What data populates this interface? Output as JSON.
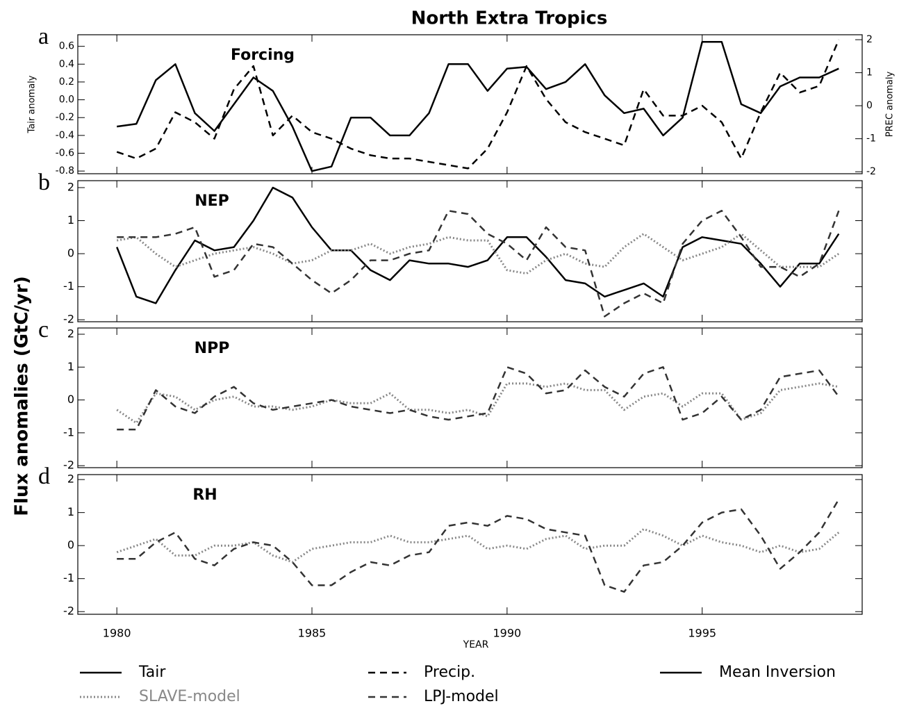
{
  "chart_data": [
    {
      "type": "line",
      "title": "North Extra Tropics",
      "panel_letter": "a",
      "panel_title": "Forcing",
      "ylabel": "Tair anomaly",
      "y2label": "PREC anomaly",
      "x": [
        1980,
        1980.5,
        1981,
        1981.5,
        1982,
        1982.5,
        1983,
        1983.5,
        1984,
        1984.5,
        1985,
        1985.5,
        1986,
        1986.5,
        1987,
        1987.5,
        1988,
        1988.5,
        1989,
        1989.5,
        1990,
        1990.5,
        1991,
        1991.5,
        1992,
        1992.5,
        1993,
        1993.5,
        1994,
        1994.5,
        1995,
        1995.5,
        1996,
        1996.5,
        1997,
        1997.5,
        1998,
        1998.5
      ],
      "xlim": [
        1979,
        1999.1
      ],
      "ylim": [
        -0.83,
        0.73
      ],
      "yticks": [
        -0.8,
        -0.6,
        -0.4,
        -0.2,
        {
          "value": 0,
          "label": "0.0"
        },
        0.2,
        0.4,
        0.6
      ],
      "y2lim": [
        -2.06,
        2.15
      ],
      "y2ticks": [
        -2,
        -1,
        0,
        1,
        2
      ],
      "series": [
        {
          "name": "Tair",
          "color": "#000000",
          "dash": "solid",
          "values": [
            -0.3,
            -0.27,
            0.22,
            0.4,
            -0.15,
            -0.35,
            -0.05,
            0.25,
            0.1,
            -0.3,
            -0.8,
            -0.75,
            -0.2,
            -0.2,
            -0.4,
            -0.4,
            -0.15,
            0.4,
            0.4,
            0.1,
            0.35,
            0.37,
            0.12,
            0.2,
            0.4,
            0.05,
            -0.15,
            -0.1,
            -0.4,
            -0.2,
            0.65,
            0.65,
            -0.05,
            -0.15,
            0.15,
            0.25,
            0.25,
            0.35
          ]
        },
        {
          "name": "Precip.",
          "color": "#000000",
          "dash": "dashed",
          "axis": "y2",
          "values": [
            -1.4,
            -1.6,
            -1.3,
            -0.2,
            -0.5,
            -1.0,
            0.5,
            1.2,
            -0.9,
            -0.3,
            -0.8,
            -1.0,
            -1.3,
            -1.5,
            -1.6,
            -1.6,
            -1.7,
            -1.8,
            -1.9,
            -1.3,
            -0.2,
            1.2,
            0.2,
            -0.5,
            -0.8,
            -1.0,
            -1.2,
            0.5,
            -0.3,
            -0.3,
            0.0,
            -0.5,
            -1.6,
            -0.2,
            1.0,
            0.4,
            0.6,
            2.0
          ]
        }
      ]
    },
    {
      "type": "line",
      "panel_letter": "b",
      "panel_title": "NEP",
      "ylabel": "Flux anomalies (GtC/yr)",
      "x": [
        1980,
        1980.5,
        1981,
        1981.5,
        1982,
        1982.5,
        1983,
        1983.5,
        1984,
        1984.5,
        1985,
        1985.5,
        1986,
        1986.5,
        1987,
        1987.5,
        1988,
        1988.5,
        1989,
        1989.5,
        1990,
        1990.5,
        1991,
        1991.5,
        1992,
        1992.5,
        1993,
        1993.5,
        1994,
        1994.5,
        1995,
        1995.5,
        1996,
        1996.5,
        1997,
        1997.5,
        1998,
        1998.5
      ],
      "xlim": [
        1979,
        1999.1
      ],
      "ylim": [
        -2.06,
        2.21
      ],
      "yticks": [
        -2,
        -1,
        0,
        1,
        2
      ],
      "series": [
        {
          "name": "Mean Inversion",
          "color": "#000000",
          "dash": "solid",
          "values": [
            0.2,
            -1.3,
            -1.5,
            -0.5,
            0.4,
            0.1,
            0.2,
            1.0,
            2.0,
            1.7,
            0.8,
            0.1,
            0.1,
            -0.5,
            -0.8,
            -0.2,
            -0.3,
            -0.3,
            -0.4,
            -0.2,
            0.5,
            0.5,
            -0.1,
            -0.8,
            -0.9,
            -1.3,
            -1.1,
            -0.9,
            -1.3,
            0.2,
            0.5,
            0.4,
            0.3,
            -0.3,
            -1.0,
            -0.3,
            -0.3,
            0.6
          ]
        },
        {
          "name": "SLAVE-model",
          "color": "#888888",
          "dash": "dotted",
          "values": [
            0.4,
            0.5,
            0.0,
            -0.4,
            -0.2,
            0.0,
            0.1,
            0.2,
            0.0,
            -0.3,
            -0.2,
            0.1,
            0.1,
            0.3,
            0.0,
            0.2,
            0.3,
            0.5,
            0.4,
            0.4,
            -0.5,
            -0.6,
            -0.2,
            0.0,
            -0.3,
            -0.4,
            0.2,
            0.6,
            0.2,
            -0.2,
            0.0,
            0.2,
            0.6,
            0.1,
            -0.4,
            -0.4,
            -0.4,
            0.0
          ]
        },
        {
          "name": "LPJ-model",
          "color": "#333333",
          "dash": "dashed",
          "values": [
            0.5,
            0.5,
            0.5,
            0.6,
            0.8,
            -0.7,
            -0.5,
            0.3,
            0.2,
            -0.3,
            -0.8,
            -1.2,
            -0.8,
            -0.2,
            -0.2,
            0.0,
            0.1,
            1.3,
            1.2,
            0.6,
            0.3,
            -0.2,
            0.8,
            0.2,
            0.1,
            -1.9,
            -1.5,
            -1.2,
            -1.5,
            0.3,
            1.0,
            1.3,
            0.5,
            -0.4,
            -0.4,
            -0.7,
            -0.3,
            1.3
          ]
        }
      ]
    },
    {
      "type": "line",
      "panel_letter": "c",
      "panel_title": "NPP",
      "x": [
        1980,
        1980.5,
        1981,
        1981.5,
        1982,
        1982.5,
        1983,
        1983.5,
        1984,
        1984.5,
        1985,
        1985.5,
        1986,
        1986.5,
        1987,
        1987.5,
        1988,
        1988.5,
        1989,
        1989.5,
        1990,
        1990.5,
        1991,
        1991.5,
        1992,
        1992.5,
        1993,
        1993.5,
        1994,
        1994.5,
        1995,
        1995.5,
        1996,
        1996.5,
        1997,
        1997.5,
        1998,
        1998.5
      ],
      "xlim": [
        1979,
        1999.1
      ],
      "ylim": [
        -2.06,
        2.19
      ],
      "yticks": [
        -2,
        -1,
        0,
        1,
        2
      ],
      "series": [
        {
          "name": "SLAVE-model",
          "color": "#888888",
          "dash": "dotted",
          "values": [
            -0.3,
            -0.7,
            0.2,
            0.1,
            -0.3,
            0.0,
            0.1,
            -0.2,
            -0.2,
            -0.3,
            -0.2,
            0.0,
            -0.1,
            -0.1,
            0.2,
            -0.3,
            -0.3,
            -0.4,
            -0.3,
            -0.5,
            0.5,
            0.5,
            0.4,
            0.5,
            0.3,
            0.3,
            -0.3,
            0.1,
            0.2,
            -0.2,
            0.2,
            0.2,
            -0.6,
            -0.4,
            0.3,
            0.4,
            0.5,
            0.4
          ]
        },
        {
          "name": "LPJ-model",
          "color": "#333333",
          "dash": "dashed",
          "values": [
            -0.9,
            -0.9,
            0.3,
            -0.2,
            -0.4,
            0.1,
            0.4,
            -0.1,
            -0.3,
            -0.2,
            -0.1,
            0.0,
            -0.2,
            -0.3,
            -0.4,
            -0.3,
            -0.5,
            -0.6,
            -0.5,
            -0.4,
            1.0,
            0.8,
            0.2,
            0.3,
            0.9,
            0.4,
            0.1,
            0.8,
            1.0,
            -0.6,
            -0.4,
            0.1,
            -0.6,
            -0.3,
            0.7,
            0.8,
            0.9,
            0.1
          ]
        }
      ]
    },
    {
      "type": "line",
      "panel_letter": "d",
      "panel_title": "RH",
      "xlabel": "YEAR",
      "x": [
        1980,
        1980.5,
        1981,
        1981.5,
        1982,
        1982.5,
        1983,
        1983.5,
        1984,
        1984.5,
        1985,
        1985.5,
        1986,
        1986.5,
        1987,
        1987.5,
        1988,
        1988.5,
        1989,
        1989.5,
        1990,
        1990.5,
        1991,
        1991.5,
        1992,
        1992.5,
        1993,
        1993.5,
        1994,
        1994.5,
        1995,
        1995.5,
        1996,
        1996.5,
        1997,
        1997.5,
        1998,
        1998.5
      ],
      "xlim": [
        1979,
        1999.1
      ],
      "ylim": [
        -2.08,
        2.15
      ],
      "yticks": [
        -2,
        -1,
        0,
        1,
        2
      ],
      "xticks": [
        1980,
        1985,
        1990,
        1995
      ],
      "series": [
        {
          "name": "SLAVE-model",
          "color": "#888888",
          "dash": "dotted",
          "values": [
            -0.2,
            0.0,
            0.2,
            -0.3,
            -0.3,
            0.0,
            0.0,
            0.1,
            -0.3,
            -0.5,
            -0.1,
            0.0,
            0.1,
            0.1,
            0.3,
            0.1,
            0.1,
            0.2,
            0.3,
            -0.1,
            0.0,
            -0.1,
            0.2,
            0.3,
            -0.1,
            0.0,
            0.0,
            0.5,
            0.3,
            0.0,
            0.3,
            0.1,
            0.0,
            -0.2,
            0.0,
            -0.2,
            -0.1,
            0.4
          ]
        },
        {
          "name": "LPJ-model",
          "color": "#333333",
          "dash": "dashed",
          "values": [
            -0.4,
            -0.4,
            0.1,
            0.4,
            -0.4,
            -0.6,
            -0.1,
            0.1,
            0.0,
            -0.5,
            -1.2,
            -1.2,
            -0.8,
            -0.5,
            -0.6,
            -0.3,
            -0.2,
            0.6,
            0.7,
            0.6,
            0.9,
            0.8,
            0.5,
            0.4,
            0.3,
            -1.2,
            -1.4,
            -0.6,
            -0.5,
            0.0,
            0.7,
            1.0,
            1.1,
            0.3,
            -0.7,
            -0.2,
            0.4,
            1.4
          ]
        }
      ]
    }
  ]
}
